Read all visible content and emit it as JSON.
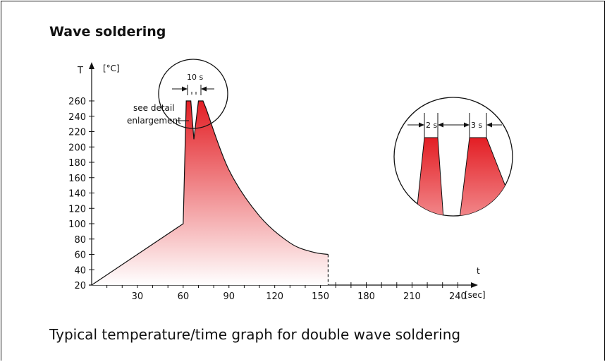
{
  "title": "Wave soldering",
  "caption": "Typical temperature/time graph for double wave soldering",
  "chart_data": {
    "type": "area",
    "ylabel": "T",
    "yunit": "[°C]",
    "xlabel": "t",
    "xunit": "[sec]",
    "xlim": [
      0,
      250
    ],
    "ylim": [
      20,
      260
    ],
    "xticks": [
      30,
      60,
      90,
      120,
      150,
      180,
      210,
      240
    ],
    "yticks": [
      20,
      40,
      60,
      80,
      100,
      120,
      140,
      160,
      180,
      200,
      220,
      240,
      260
    ],
    "fill_color_top": "#e31e24",
    "fill_color_bottom": "#ffffff",
    "x": [
      0,
      60,
      62,
      65,
      67,
      70,
      73,
      75,
      90,
      110,
      130,
      145,
      155
    ],
    "values": [
      20,
      100,
      260,
      260,
      210,
      260,
      260,
      250,
      170,
      110,
      75,
      63,
      60
    ],
    "annotations": {
      "duration_label": "10 s",
      "see_detail": "see detail",
      "enlargement": "enlargement",
      "first_wave": "2 s",
      "second_wave": "3 s"
    }
  }
}
